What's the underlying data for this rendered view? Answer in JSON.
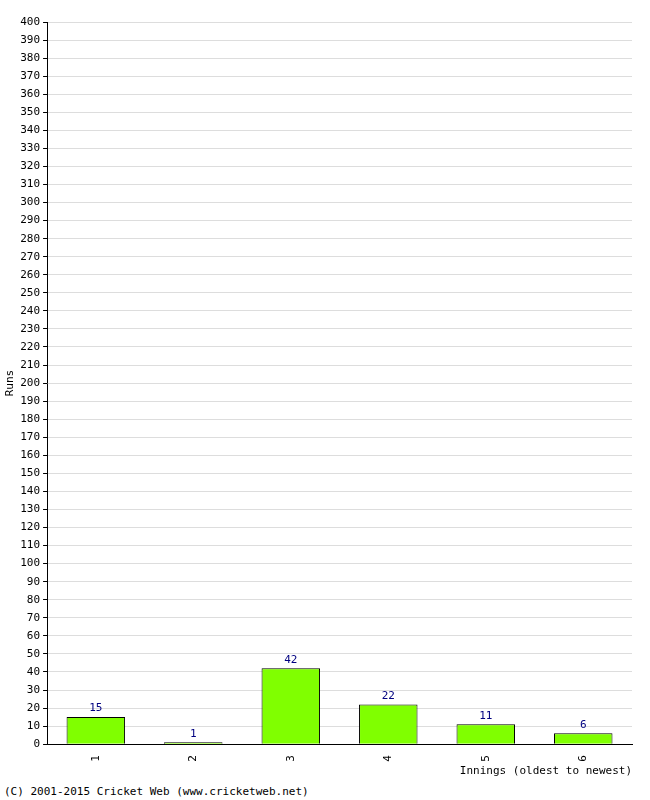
{
  "chart_data": {
    "type": "bar",
    "categories": [
      "1",
      "2",
      "3",
      "4",
      "5",
      "6"
    ],
    "values": [
      15,
      1,
      42,
      22,
      11,
      6
    ],
    "color": "#80ff00",
    "x_label": "Innings (oldest to newest)",
    "y_label": "Runs",
    "annotations": [
      "(C) 2001-2015 Cricket Web (www.cricketweb.net)"
    ],
    "ylim": [
      0,
      400
    ],
    "yticks": [
      0,
      10,
      20,
      30,
      40,
      50,
      60,
      70,
      80,
      90,
      100,
      110,
      120,
      130,
      140,
      150,
      160,
      170,
      180,
      190,
      200,
      210,
      220,
      230,
      240,
      250,
      260,
      270,
      280,
      290,
      300,
      310,
      320,
      330,
      340,
      350,
      360,
      370,
      380,
      390,
      400
    ],
    "grid": true,
    "data_labels": true
  }
}
